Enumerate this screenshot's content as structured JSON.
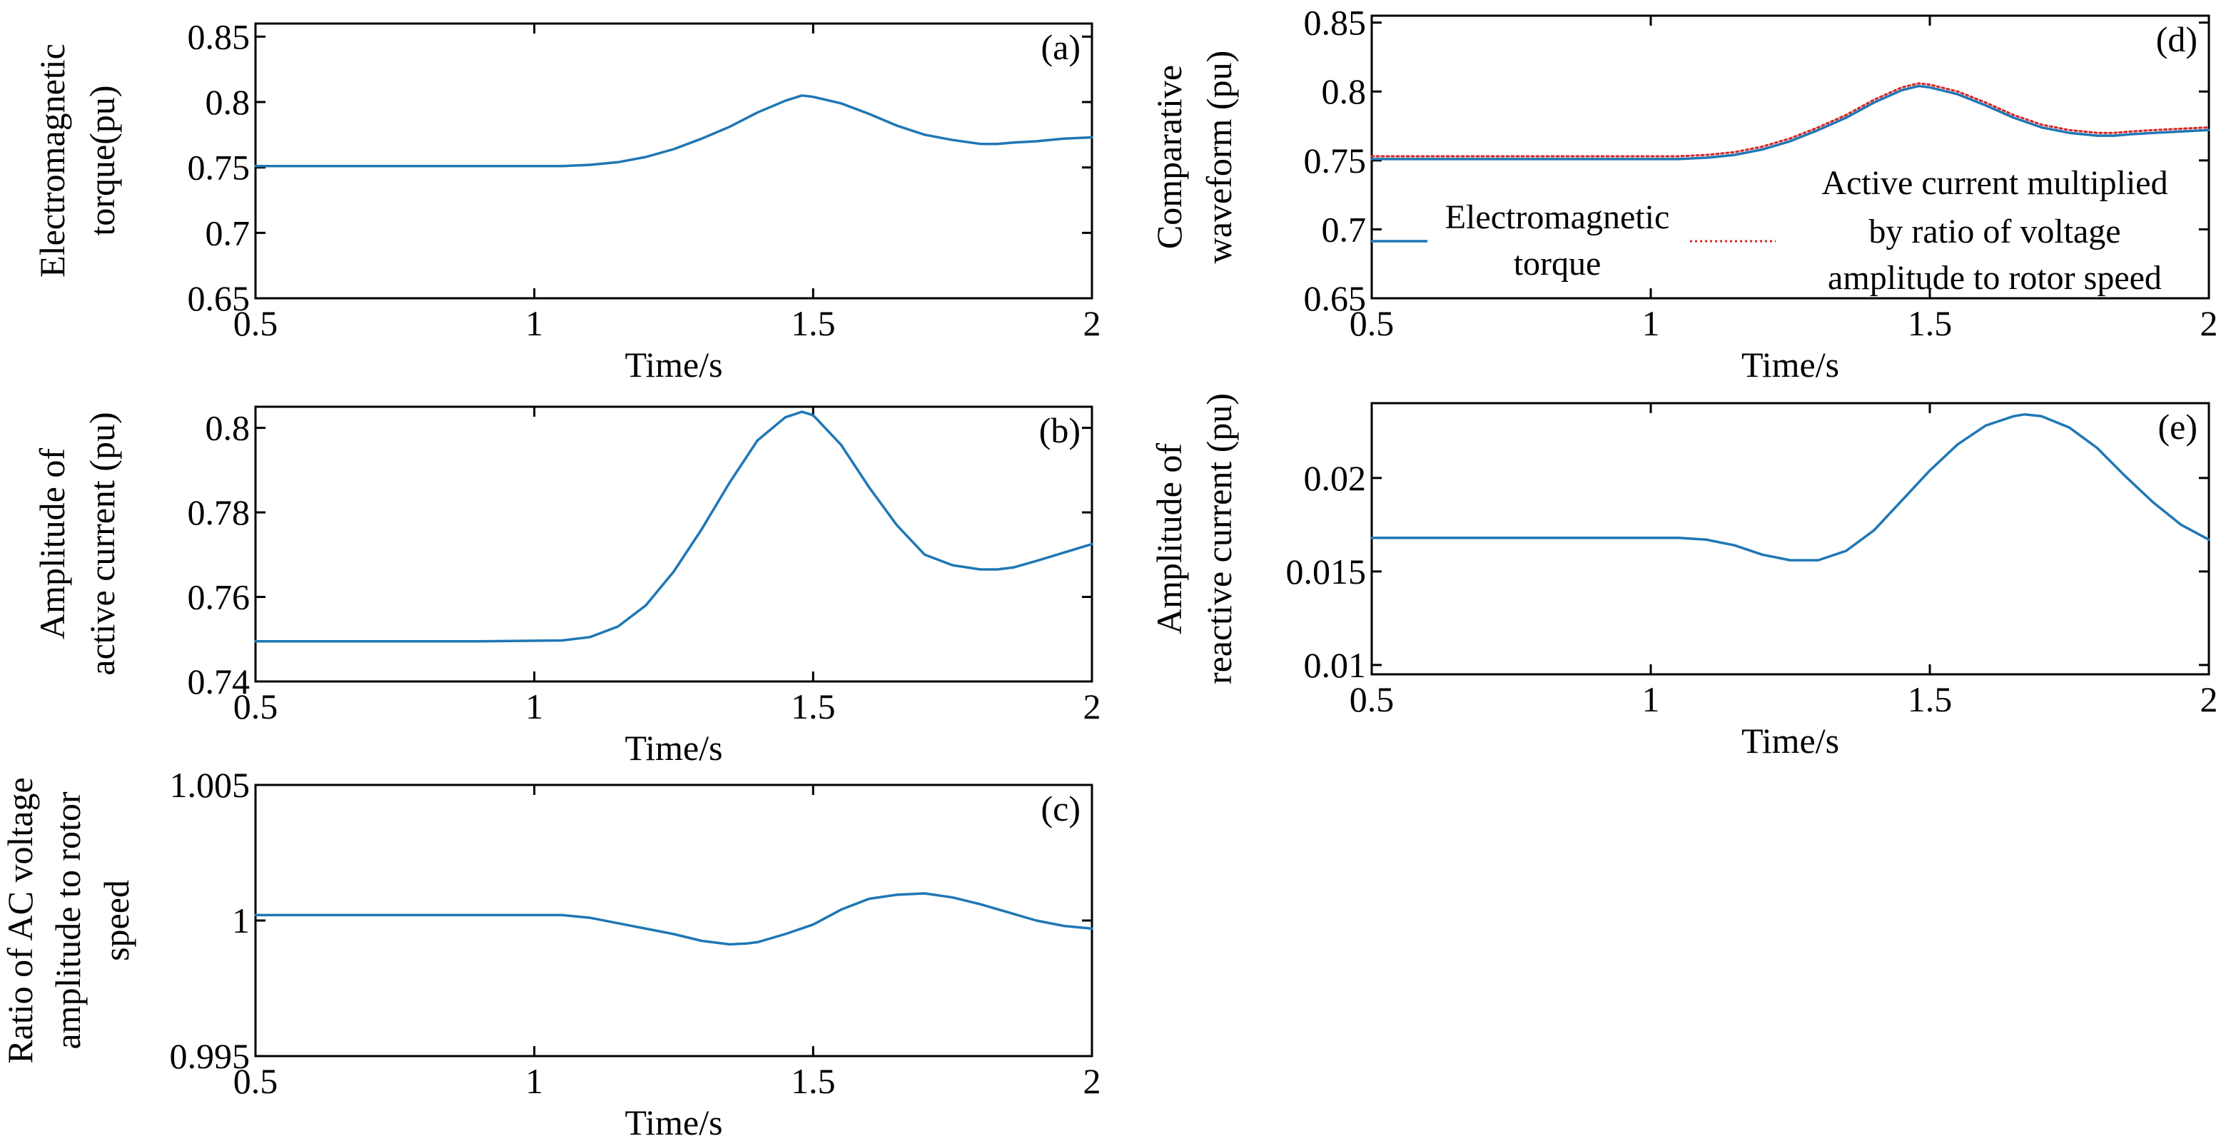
{
  "colors": {
    "primary": "#1f77b4",
    "secondary": "#d62728",
    "axis": "#000000"
  },
  "chart_data": [
    {
      "id": "a",
      "type": "line",
      "tag": "(a)",
      "xlabel": "Time/s",
      "ylabel": [
        "Electromagnetic",
        "torque(pu)"
      ],
      "xlim": [
        0.5,
        2
      ],
      "ylim": [
        0.65,
        0.86
      ],
      "xticks": [
        0.5,
        1,
        1.5,
        2
      ],
      "xtick_labels": [
        "0.5",
        "1",
        "1.5",
        "2"
      ],
      "yticks": [
        0.65,
        0.7,
        0.75,
        0.8,
        0.85
      ],
      "ytick_labels": [
        "0.65",
        "0.7",
        "0.75",
        "0.8",
        "0.85"
      ],
      "series": [
        {
          "name": "Electromagnetic torque",
          "style": "solid",
          "x": [
            0.5,
            0.7,
            0.9,
            1.05,
            1.1,
            1.15,
            1.2,
            1.25,
            1.3,
            1.35,
            1.4,
            1.45,
            1.48,
            1.5,
            1.55,
            1.6,
            1.65,
            1.7,
            1.75,
            1.8,
            1.83,
            1.86,
            1.9,
            1.95,
            2.0
          ],
          "y": [
            0.751,
            0.751,
            0.751,
            0.751,
            0.752,
            0.754,
            0.758,
            0.764,
            0.772,
            0.781,
            0.792,
            0.801,
            0.805,
            0.804,
            0.799,
            0.791,
            0.782,
            0.775,
            0.771,
            0.768,
            0.768,
            0.769,
            0.77,
            0.772,
            0.773
          ]
        }
      ]
    },
    {
      "id": "b",
      "type": "line",
      "tag": "(b)",
      "xlabel": "Time/s",
      "ylabel": [
        "Amplitude of",
        "active current (pu)"
      ],
      "xlim": [
        0.5,
        2
      ],
      "ylim": [
        0.74,
        0.805
      ],
      "xticks": [
        0.5,
        1,
        1.5,
        2
      ],
      "xtick_labels": [
        "0.5",
        "1",
        "1.5",
        "2"
      ],
      "yticks": [
        0.74,
        0.76,
        0.78,
        0.8
      ],
      "ytick_labels": [
        "0.74",
        "0.76",
        "0.78",
        "0.8"
      ],
      "series": [
        {
          "name": "Amplitude of active current",
          "style": "solid",
          "x": [
            0.5,
            0.7,
            0.9,
            1.05,
            1.1,
            1.15,
            1.2,
            1.25,
            1.3,
            1.35,
            1.4,
            1.45,
            1.48,
            1.5,
            1.55,
            1.6,
            1.65,
            1.7,
            1.75,
            1.8,
            1.83,
            1.86,
            1.9,
            1.95,
            2.0
          ],
          "y": [
            0.7495,
            0.7495,
            0.7495,
            0.7497,
            0.7505,
            0.753,
            0.758,
            0.766,
            0.776,
            0.787,
            0.797,
            0.8025,
            0.8038,
            0.803,
            0.796,
            0.786,
            0.777,
            0.77,
            0.7675,
            0.7665,
            0.7665,
            0.767,
            0.7685,
            0.7705,
            0.7725
          ]
        }
      ]
    },
    {
      "id": "c",
      "type": "line",
      "tag": "(c)",
      "xlabel": "Time/s",
      "ylabel": [
        "Ratio of AC voltage",
        "amplitude to rotor",
        "speed"
      ],
      "xlim": [
        0.5,
        2
      ],
      "ylim": [
        0.995,
        1.005
      ],
      "xticks": [
        0.5,
        1,
        1.5,
        2
      ],
      "xtick_labels": [
        "0.5",
        "1",
        "1.5",
        "2"
      ],
      "yticks": [
        0.995,
        1,
        1.005
      ],
      "ytick_labels": [
        "0.995",
        "1",
        "1.005"
      ],
      "series": [
        {
          "name": "Ratio of AC voltage amplitude to rotor speed",
          "style": "solid",
          "x": [
            0.5,
            0.7,
            0.9,
            1.05,
            1.1,
            1.15,
            1.2,
            1.25,
            1.3,
            1.35,
            1.38,
            1.4,
            1.45,
            1.5,
            1.55,
            1.6,
            1.65,
            1.7,
            1.75,
            1.8,
            1.85,
            1.9,
            1.95,
            2.0
          ],
          "y": [
            1.0002,
            1.0002,
            1.0002,
            1.0002,
            1.0001,
            0.9999,
            0.9997,
            0.9995,
            0.99925,
            0.99912,
            0.99915,
            0.9992,
            0.9995,
            0.99985,
            1.0004,
            1.0008,
            1.00095,
            1.001,
            1.00085,
            1.0006,
            1.0003,
            1.0,
            0.9998,
            0.9997
          ]
        }
      ]
    },
    {
      "id": "d",
      "type": "line",
      "tag": "(d)",
      "xlabel": "Time/s",
      "ylabel": [
        "Comparative",
        "waveform (pu)"
      ],
      "xlim": [
        0.5,
        2
      ],
      "ylim": [
        0.65,
        0.855
      ],
      "xticks": [
        0.5,
        1,
        1.5,
        2
      ],
      "xtick_labels": [
        "0.5",
        "1",
        "1.5",
        "2"
      ],
      "yticks": [
        0.65,
        0.7,
        0.75,
        0.8,
        0.85
      ],
      "ytick_labels": [
        "0.65",
        "0.7",
        "0.75",
        "0.8",
        "0.85"
      ],
      "legend": {
        "placement": "lower",
        "entries": [
          {
            "lines": [
              "Electromagnetic",
              "torque"
            ]
          },
          {
            "lines": [
              "Active current multiplied",
              "by ratio of voltage",
              "amplitude to rotor speed"
            ]
          }
        ]
      },
      "series": [
        {
          "name": "Electromagnetic torque",
          "style": "solid",
          "x": [
            0.5,
            0.7,
            0.9,
            1.05,
            1.1,
            1.15,
            1.2,
            1.25,
            1.3,
            1.35,
            1.4,
            1.45,
            1.48,
            1.5,
            1.55,
            1.6,
            1.65,
            1.7,
            1.75,
            1.8,
            1.83,
            1.86,
            1.9,
            1.95,
            2.0
          ],
          "y": [
            0.751,
            0.751,
            0.751,
            0.751,
            0.752,
            0.754,
            0.758,
            0.764,
            0.772,
            0.781,
            0.792,
            0.801,
            0.804,
            0.803,
            0.798,
            0.79,
            0.781,
            0.774,
            0.77,
            0.768,
            0.768,
            0.769,
            0.77,
            0.771,
            0.772
          ]
        },
        {
          "name": "Active current multiplied by ratio of voltage amplitude to rotor speed",
          "style": "dotted",
          "x": [
            0.5,
            0.7,
            0.9,
            1.05,
            1.1,
            1.15,
            1.2,
            1.25,
            1.3,
            1.35,
            1.4,
            1.45,
            1.48,
            1.5,
            1.55,
            1.6,
            1.65,
            1.7,
            1.75,
            1.8,
            1.83,
            1.86,
            1.9,
            1.95,
            2.0
          ],
          "y": [
            0.753,
            0.753,
            0.753,
            0.753,
            0.754,
            0.756,
            0.76,
            0.766,
            0.774,
            0.783,
            0.794,
            0.803,
            0.806,
            0.805,
            0.8,
            0.792,
            0.783,
            0.776,
            0.772,
            0.77,
            0.77,
            0.771,
            0.772,
            0.773,
            0.774
          ]
        }
      ]
    },
    {
      "id": "e",
      "type": "line",
      "tag": "(e)",
      "xlabel": "Time/s",
      "ylabel": [
        "Amplitude of",
        "reactive current (pu)"
      ],
      "xlim": [
        0.5,
        2
      ],
      "ylim": [
        0.0095,
        0.024
      ],
      "xticks": [
        0.5,
        1,
        1.5,
        2
      ],
      "xtick_labels": [
        "0.5",
        "1",
        "1.5",
        "2"
      ],
      "yticks": [
        0.01,
        0.015,
        0.02
      ],
      "ytick_labels": [
        "0.01",
        "0.015",
        "0.02"
      ],
      "series": [
        {
          "name": "Amplitude of reactive current",
          "style": "solid",
          "x": [
            0.5,
            0.7,
            0.9,
            1.0,
            1.05,
            1.1,
            1.15,
            1.2,
            1.25,
            1.3,
            1.35,
            1.4,
            1.45,
            1.5,
            1.55,
            1.6,
            1.65,
            1.67,
            1.7,
            1.75,
            1.8,
            1.85,
            1.9,
            1.95,
            2.0
          ],
          "y": [
            0.0168,
            0.0168,
            0.0168,
            0.0168,
            0.0168,
            0.0167,
            0.0164,
            0.0159,
            0.0156,
            0.0156,
            0.0161,
            0.0172,
            0.0188,
            0.0204,
            0.0218,
            0.0228,
            0.0233,
            0.0234,
            0.0233,
            0.0227,
            0.0216,
            0.0201,
            0.0187,
            0.0175,
            0.0167
          ]
        }
      ]
    }
  ]
}
